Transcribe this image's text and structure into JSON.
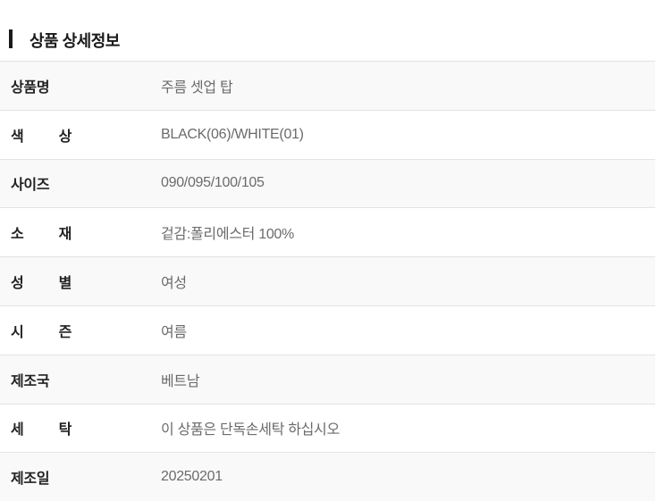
{
  "section": {
    "title": "상품 상세정보"
  },
  "spec_table": {
    "rows": [
      {
        "label": "상품명",
        "value": "주름 셋업 탑"
      },
      {
        "label": "색 상",
        "value": "BLACK(06)/WHITE(01)"
      },
      {
        "label": "사이즈",
        "value": "090/095/100/105"
      },
      {
        "label": "소 재",
        "value": "겉감:폴리에스터 100%"
      },
      {
        "label": "성 별",
        "value": "여성"
      },
      {
        "label": "시 즌",
        "value": "여름"
      },
      {
        "label": "제조국",
        "value": "베트남"
      },
      {
        "label": "세 탁",
        "value": "이 상품은 단독손세탁 하십시오"
      },
      {
        "label": "제조일",
        "value": "20250201"
      }
    ]
  },
  "colors": {
    "title_text": "#1a1a1a",
    "label_text": "#222222",
    "value_text": "#6b6b6b",
    "row_divider": "#e3e3e3",
    "row_alt_background": "#f9f9f9",
    "row_background": "#ffffff"
  }
}
